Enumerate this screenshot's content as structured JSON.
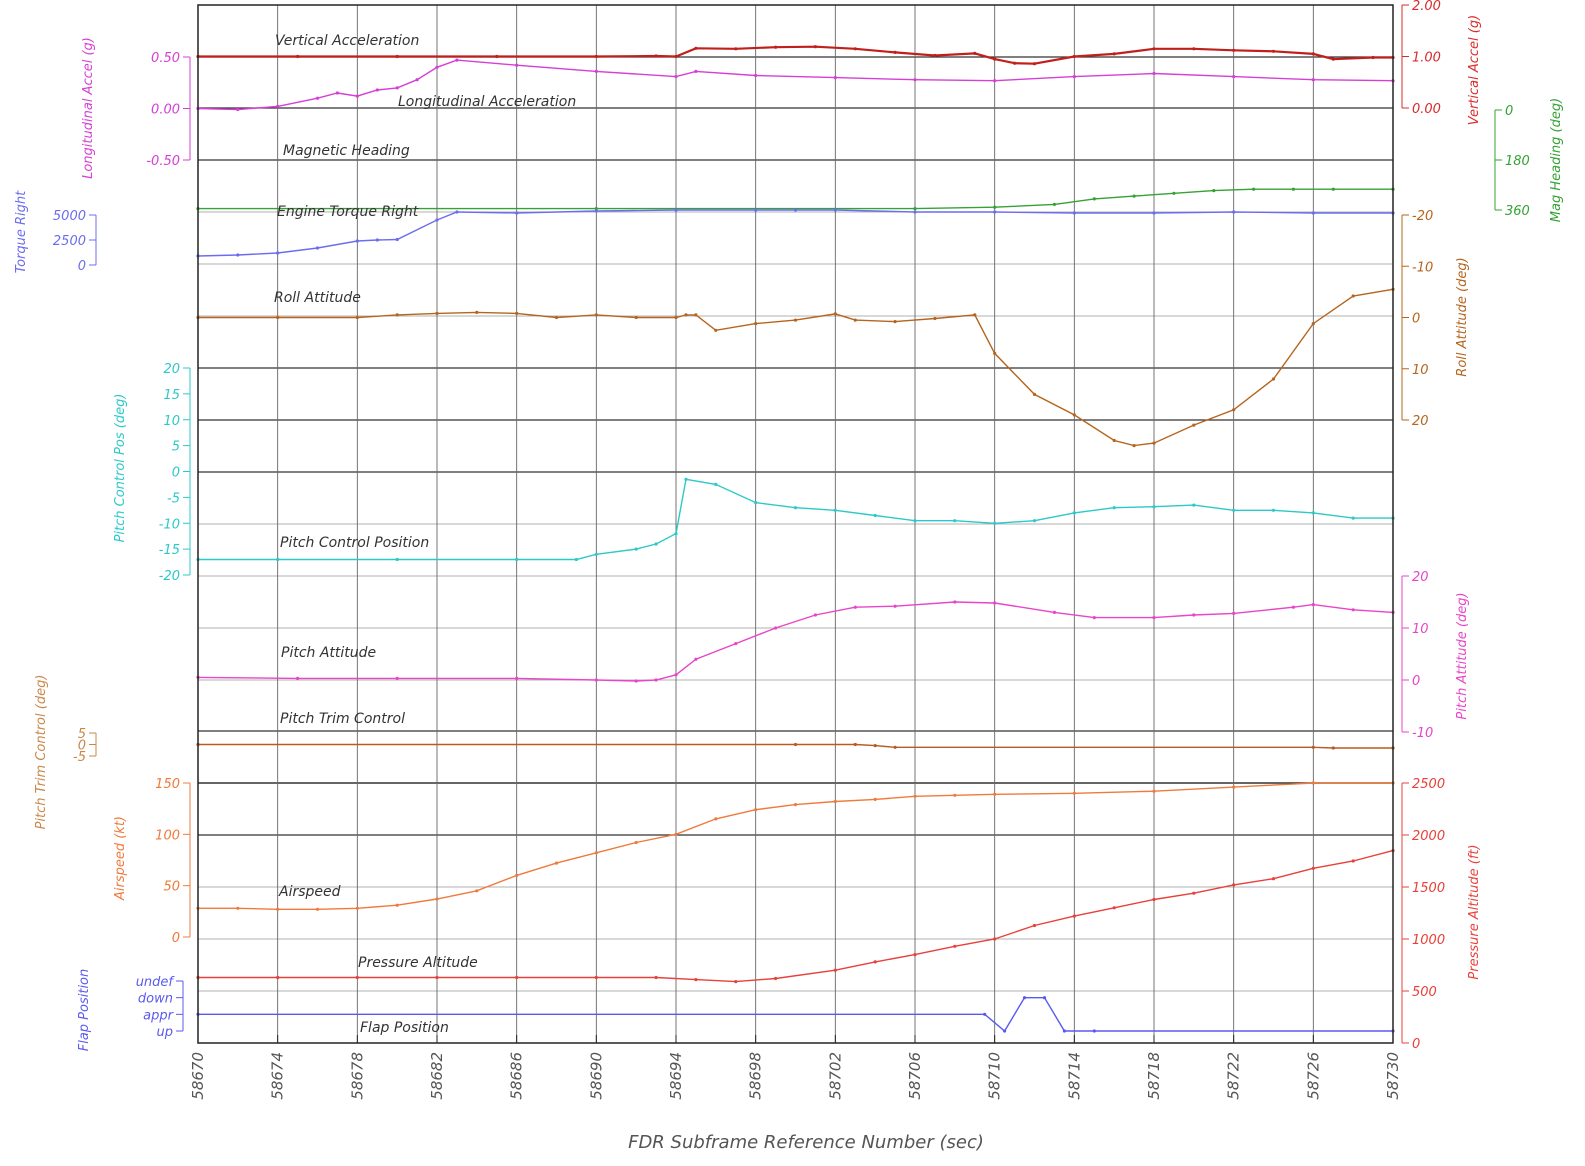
{
  "chart_data": {
    "type": "line",
    "xlabel": "FDR Subframe Reference Number (sec)",
    "xlim": [
      58670,
      58730
    ],
    "x_ticks": [
      "58670",
      "58674",
      "58678",
      "58682",
      "58686",
      "58690",
      "58694",
      "58698",
      "58702",
      "58706",
      "58710",
      "58714",
      "58718",
      "58722",
      "58726",
      "58730"
    ],
    "axes": [
      {
        "id": "long_acc",
        "label": "Longitudinal Accel (g)",
        "side": "left",
        "color": "#d63fd6",
        "ticks": [
          {
            "value": 0.5,
            "label": "0.50"
          },
          {
            "value": 0,
            "label": "0.00"
          },
          {
            "value": -0.5,
            "label": "-0.50"
          }
        ]
      },
      {
        "id": "vert_acc",
        "label": "Vertical Accel (g)",
        "side": "right",
        "color": "#d92b2b",
        "ticks": [
          {
            "value": 2,
            "label": "2.00"
          },
          {
            "value": 1,
            "label": "1.00"
          },
          {
            "value": 0,
            "label": "0.00"
          }
        ]
      },
      {
        "id": "mag_hdg",
        "label": "Mag Heading (deg)",
        "side": "right",
        "color": "#34a234",
        "ticks": [
          {
            "value": 0,
            "label": "0"
          },
          {
            "value": 180,
            "label": "180"
          },
          {
            "value": 360,
            "label": "360"
          }
        ]
      },
      {
        "id": "torque",
        "label": "Torque Right",
        "side": "left",
        "color": "#6c6cf0",
        "ticks": [
          {
            "value": 5000,
            "label": "5000"
          },
          {
            "value": 2500,
            "label": "2500"
          },
          {
            "value": 0,
            "label": "0"
          }
        ]
      },
      {
        "id": "roll",
        "label": "Roll Attitude (deg)",
        "side": "right",
        "color": "#b5651d",
        "ticks": [
          {
            "value": -20,
            "label": "-20"
          },
          {
            "value": -10,
            "label": "-10"
          },
          {
            "value": 0,
            "label": "0"
          },
          {
            "value": 10,
            "label": "10"
          },
          {
            "value": 20,
            "label": "20"
          }
        ]
      },
      {
        "id": "pitch_ctl",
        "label": "Pitch Control Pos (deg)",
        "side": "left",
        "color": "#2cc9c9",
        "ticks": [
          {
            "value": 20,
            "label": "20"
          },
          {
            "value": 15,
            "label": "15"
          },
          {
            "value": 10,
            "label": "10"
          },
          {
            "value": 5,
            "label": "5"
          },
          {
            "value": 0,
            "label": "0"
          },
          {
            "value": -5,
            "label": "-5"
          },
          {
            "value": -10,
            "label": "-10"
          },
          {
            "value": -15,
            "label": "-15"
          },
          {
            "value": -20,
            "label": "-20"
          }
        ]
      },
      {
        "id": "pitch_att",
        "label": "Pitch Attitude (deg)",
        "side": "right",
        "color": "#e845c8",
        "ticks": [
          {
            "value": 20,
            "label": "20"
          },
          {
            "value": 10,
            "label": "10"
          },
          {
            "value": 0,
            "label": "0"
          },
          {
            "value": -10,
            "label": "-10"
          }
        ]
      },
      {
        "id": "trim",
        "label": "Pitch Trim Control (deg)",
        "side": "left",
        "color": "#c9884a",
        "ticks": [
          {
            "value": 5,
            "label": "5"
          },
          {
            "value": 0,
            "label": "0"
          },
          {
            "value": -5,
            "label": "-5"
          }
        ]
      },
      {
        "id": "airspeed",
        "label": "Airspeed (kt)",
        "side": "left",
        "color": "#f07a3c",
        "ticks": [
          {
            "value": 150,
            "label": "150"
          },
          {
            "value": 100,
            "label": "100"
          },
          {
            "value": 50,
            "label": "50"
          },
          {
            "value": 0,
            "label": "0"
          }
        ]
      },
      {
        "id": "press_alt",
        "label": "Pressure Altitude (ft)",
        "side": "right",
        "color": "#e8403a",
        "ticks": [
          {
            "value": 2500,
            "label": "2500"
          },
          {
            "value": 2000,
            "label": "2000"
          },
          {
            "value": 1500,
            "label": "1500"
          },
          {
            "value": 1000,
            "label": "1000"
          },
          {
            "value": 500,
            "label": "500"
          },
          {
            "value": 0,
            "label": "0"
          }
        ]
      },
      {
        "id": "flap",
        "label": "Flap Position",
        "side": "left",
        "color": "#5a5af0",
        "ticks": [
          {
            "value": 3,
            "label": "undef"
          },
          {
            "value": 2,
            "label": "down"
          },
          {
            "value": 1,
            "label": "appr"
          },
          {
            "value": 0,
            "label": "up"
          }
        ]
      }
    ],
    "series": [
      {
        "name": "Vertical Acceleration",
        "axis": "vert_acc",
        "color": "#c0201c",
        "x": [
          58670,
          58675,
          58680,
          58685,
          58690,
          58693,
          58694,
          58695,
          58697,
          58699,
          58701,
          58703,
          58705,
          58707,
          58709,
          58710,
          58711,
          58712,
          58714,
          58716,
          58718,
          58720,
          58722,
          58724,
          58726,
          58727,
          58729,
          58730
        ],
        "y": [
          1.0,
          1.0,
          1.0,
          1.0,
          1.0,
          1.01,
          1.0,
          1.16,
          1.15,
          1.18,
          1.19,
          1.15,
          1.08,
          1.02,
          1.06,
          0.95,
          0.87,
          0.86,
          1.0,
          1.05,
          1.15,
          1.15,
          1.12,
          1.1,
          1.05,
          0.95,
          0.98,
          0.98
        ]
      },
      {
        "name": "Longitudinal Acceleration",
        "axis": "long_acc",
        "color": "#d63fd6",
        "x": [
          58670,
          58672,
          58674,
          58676,
          58677,
          58678,
          58679,
          58680,
          58681,
          58682,
          58683,
          58686,
          58690,
          58694,
          58695,
          58698,
          58702,
          58706,
          58710,
          58714,
          58718,
          58722,
          58726,
          58730
        ],
        "y": [
          0.0,
          -0.01,
          0.02,
          0.1,
          0.15,
          0.12,
          0.18,
          0.2,
          0.28,
          0.4,
          0.47,
          0.42,
          0.36,
          0.31,
          0.36,
          0.32,
          0.3,
          0.28,
          0.27,
          0.31,
          0.34,
          0.31,
          0.28,
          0.27
        ]
      },
      {
        "name": "Magnetic Heading",
        "axis": "mag_hdg",
        "color": "#34a234",
        "x": [
          58670,
          58690,
          58706,
          58710,
          58713,
          58715,
          58717,
          58719,
          58721,
          58723,
          58725,
          58727,
          58730
        ],
        "y": [
          355,
          355,
          355,
          350,
          340,
          320,
          310,
          300,
          290,
          285,
          285,
          285,
          285
        ]
      },
      {
        "name": "Engine Torque Right",
        "axis": "torque",
        "color": "#6c6cf0",
        "x": [
          58670,
          58672,
          58674,
          58676,
          58678,
          58679,
          58680,
          58682,
          58683,
          58686,
          58690,
          58694,
          58698,
          58700,
          58702,
          58706,
          58710,
          58714,
          58718,
          58722,
          58726,
          58730
        ],
        "y": [
          900,
          1000,
          1200,
          1700,
          2400,
          2500,
          2550,
          4500,
          5300,
          5200,
          5400,
          5500,
          5500,
          5500,
          5500,
          5300,
          5300,
          5200,
          5200,
          5300,
          5200,
          5200
        ]
      },
      {
        "name": "Roll Attitude",
        "axis": "roll",
        "color": "#b5651d",
        "x": [
          58670,
          58674,
          58678,
          58680,
          58682,
          58684,
          58686,
          58688,
          58690,
          58692,
          58694,
          58694.5,
          58695,
          58696,
          58698,
          58700,
          58702,
          58703,
          58705,
          58707,
          58709,
          58710,
          58712,
          58714,
          58716,
          58717,
          58718,
          58720,
          58722,
          58724,
          58726,
          58728,
          58730
        ],
        "y": [
          0,
          0,
          0,
          -0.5,
          -0.8,
          -1.0,
          -0.8,
          0,
          -0.5,
          0,
          0,
          -0.5,
          -0.5,
          2.5,
          1.2,
          0.5,
          -0.7,
          0.5,
          0.8,
          0.2,
          -0.5,
          7,
          15,
          19,
          24,
          25,
          24.5,
          21,
          18,
          12,
          1.2,
          -4.2,
          -5.5
        ]
      },
      {
        "name": "Pitch Control Position",
        "axis": "pitch_ctl",
        "color": "#2cc9c9",
        "x": [
          58670,
          58674,
          58680,
          58686,
          58689,
          58690,
          58692,
          58693,
          58694,
          58694.5,
          58696,
          58698,
          58700,
          58702,
          58704,
          58706,
          58708,
          58710,
          58712,
          58714,
          58716,
          58718,
          58720,
          58722,
          58724,
          58726,
          58728,
          58730
        ],
        "y": [
          -17,
          -17,
          -17,
          -17,
          -17,
          -16,
          -15,
          -14,
          -12,
          -1.5,
          -2.5,
          -6,
          -7,
          -7.5,
          -8.5,
          -9.5,
          -9.5,
          -10,
          -9.5,
          -8,
          -7,
          -6.8,
          -6.5,
          -7.5,
          -7.5,
          -8,
          -9,
          -9
        ]
      },
      {
        "name": "Pitch Attitude",
        "axis": "pitch_att",
        "color": "#e845c8",
        "x": [
          58670,
          58675,
          58680,
          58686,
          58690,
          58692,
          58693,
          58694,
          58695,
          58697,
          58699,
          58701,
          58703,
          58705,
          58708,
          58710,
          58713,
          58715,
          58718,
          58720,
          58722,
          58725,
          58726,
          58728,
          58730
        ],
        "y": [
          0.5,
          0.3,
          0.3,
          0.3,
          0,
          -0.2,
          0,
          1,
          4,
          7,
          10,
          12.5,
          14,
          14.2,
          15,
          14.8,
          13,
          12,
          12,
          12.5,
          12.8,
          14,
          14.5,
          13.5,
          13
        ]
      },
      {
        "name": "Pitch Trim Control",
        "axis": "trim",
        "color": "#b85a22",
        "x": [
          58670,
          58700,
          58703,
          58704,
          58705,
          58726,
          58727,
          58730
        ],
        "y": [
          0,
          0,
          0,
          -0.5,
          -1.2,
          -1.2,
          -1.5,
          -1.5
        ]
      },
      {
        "name": "Airspeed",
        "axis": "airspeed",
        "color": "#f07a3c",
        "x": [
          58670,
          58672,
          58674,
          58676,
          58678,
          58680,
          58682,
          58684,
          58686,
          58688,
          58690,
          58692,
          58694,
          58696,
          58698,
          58700,
          58702,
          58704,
          58706,
          58708,
          58710,
          58714,
          58718,
          58722,
          58726,
          58730
        ],
        "y": [
          28,
          28,
          27,
          27,
          28,
          31,
          37,
          45,
          60,
          72,
          82,
          92,
          100,
          115,
          124,
          129,
          132,
          134,
          137,
          138,
          139,
          140,
          142,
          146,
          150,
          150
        ]
      },
      {
        "name": "Pressure Altitude",
        "axis": "press_alt",
        "color": "#e8403a",
        "x": [
          58670,
          58674,
          58678,
          58682,
          58686,
          58690,
          58693,
          58695,
          58697,
          58699,
          58702,
          58704,
          58706,
          58708,
          58710,
          58712,
          58714,
          58716,
          58718,
          58720,
          58722,
          58724,
          58726,
          58728,
          58730
        ],
        "y": [
          630,
          630,
          630,
          630,
          630,
          630,
          630,
          610,
          590,
          620,
          700,
          780,
          850,
          930,
          1000,
          1130,
          1220,
          1300,
          1380,
          1440,
          1520,
          1580,
          1680,
          1750,
          1850
        ]
      },
      {
        "name": "Flap Position",
        "axis": "flap",
        "color": "#5a5af0",
        "x": [
          58670,
          58709.5,
          58710.5,
          58711.5,
          58712.5,
          58713.5,
          58715,
          58730
        ],
        "y": [
          1,
          1,
          0,
          2,
          2,
          0,
          0,
          0
        ]
      }
    ],
    "grid": true,
    "legend": "none"
  }
}
